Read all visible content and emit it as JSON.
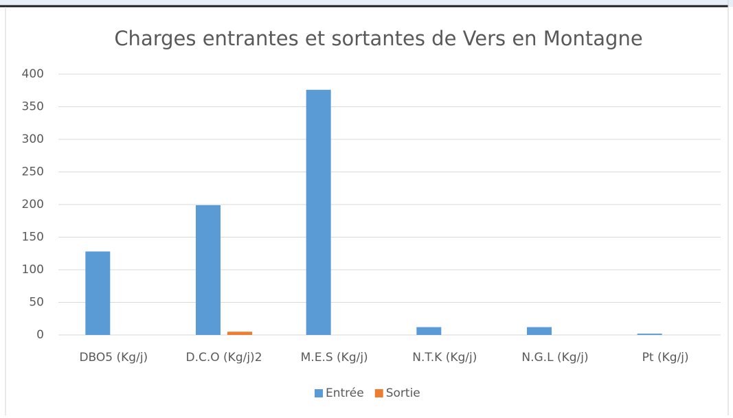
{
  "chart_data": {
    "type": "bar",
    "title": "Charges entrantes et sortantes de Vers en Montagne",
    "categories": [
      "DBO5 (Kg/j)",
      "D.C.O (Kg/j)2",
      "M.E.S (Kg/j)",
      "N.T.K (Kg/j)",
      "N.G.L (Kg/j)",
      "Pt (Kg/j)"
    ],
    "series": [
      {
        "name": "Entrée",
        "color": "#5b9bd5",
        "values": [
          128,
          199,
          376,
          12,
          12,
          2
        ]
      },
      {
        "name": "Sortie",
        "color": "#ed7d31",
        "values": [
          0,
          5,
          0,
          0,
          0,
          0
        ]
      }
    ],
    "ylim": [
      0,
      400
    ],
    "yticks": [
      0,
      50,
      100,
      150,
      200,
      250,
      300,
      350,
      400
    ],
    "grid": true,
    "legend": "bottom"
  }
}
